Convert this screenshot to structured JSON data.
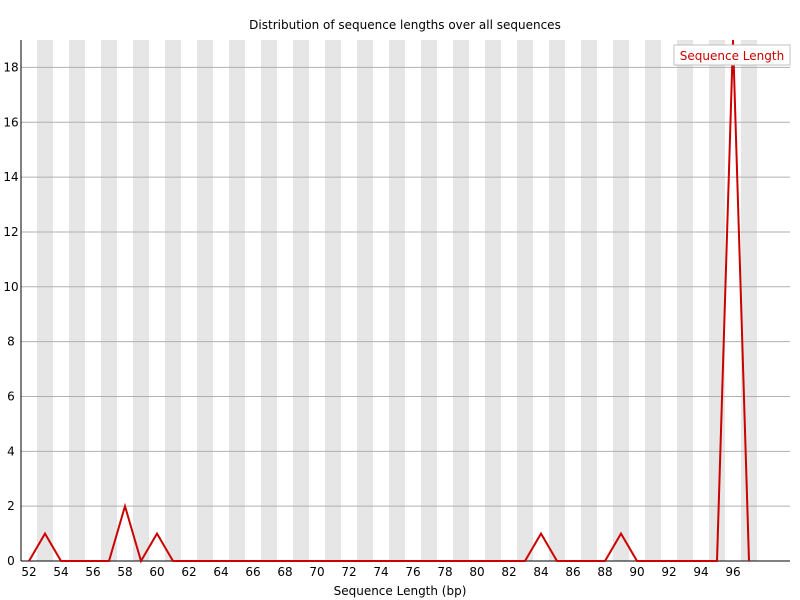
{
  "chart_data": {
    "type": "line",
    "title": "Distribution of sequence lengths over all sequences",
    "xlabel": "Sequence Length (bp)",
    "ylabel": "",
    "x": [
      52,
      53,
      54,
      55,
      56,
      57,
      58,
      59,
      60,
      61,
      62,
      63,
      64,
      65,
      66,
      67,
      68,
      69,
      70,
      71,
      72,
      73,
      74,
      75,
      76,
      77,
      78,
      79,
      80,
      81,
      82,
      83,
      84,
      85,
      86,
      87,
      88,
      89,
      90,
      91,
      92,
      93,
      94,
      95,
      96,
      97
    ],
    "series": [
      {
        "name": "Sequence Length",
        "color": "#cc0000",
        "values": [
          0,
          1,
          0,
          0,
          0,
          0,
          2,
          0,
          1,
          0,
          0,
          0,
          0,
          0,
          0,
          0,
          0,
          0,
          0,
          0,
          0,
          0,
          0,
          0,
          0,
          0,
          0,
          0,
          0,
          0,
          0,
          0,
          1,
          0,
          0,
          0,
          0,
          1,
          0,
          0,
          0,
          0,
          0,
          0,
          19,
          0
        ]
      }
    ],
    "xticks": [
      "52",
      "54",
      "56",
      "58",
      "60",
      "62",
      "64",
      "66",
      "68",
      "70",
      "72",
      "74",
      "76",
      "78",
      "80",
      "82",
      "84",
      "86",
      "88",
      "90",
      "92",
      "94",
      "96"
    ],
    "yticks": [
      "0",
      "2",
      "4",
      "6",
      "8",
      "10",
      "12",
      "14",
      "16",
      "18"
    ],
    "ylim": [
      0,
      19
    ],
    "grid": "horizontal",
    "legend": "top-right"
  }
}
